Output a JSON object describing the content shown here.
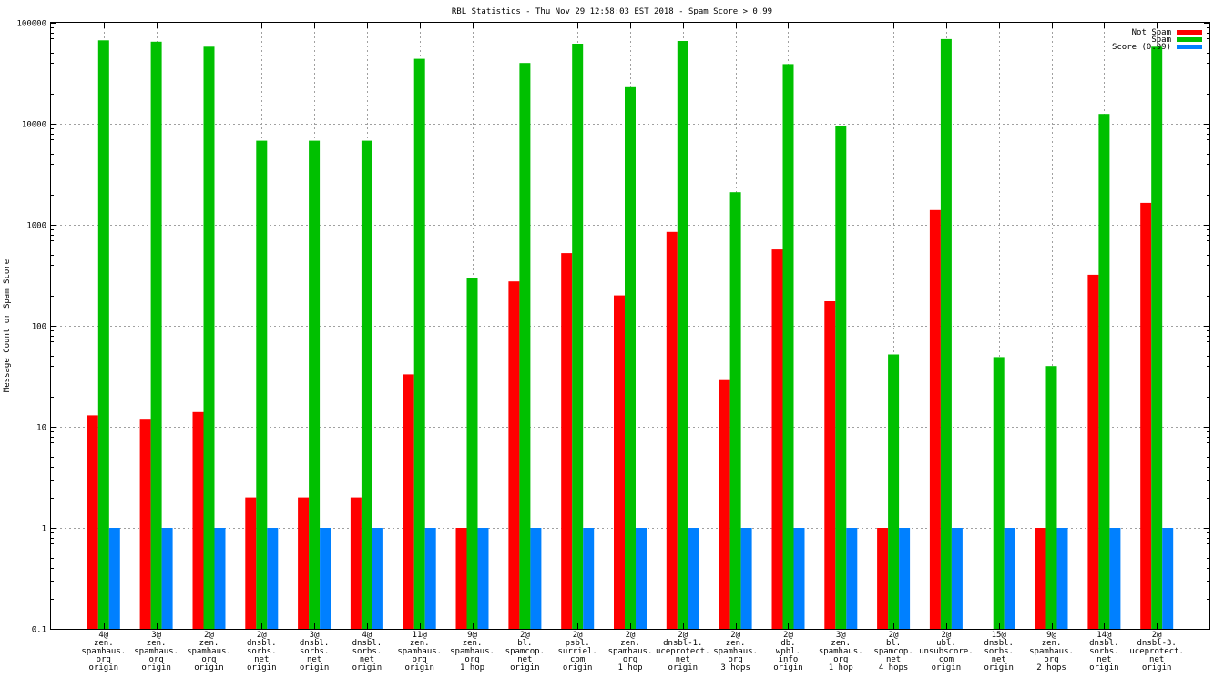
{
  "chart_data": {
    "type": "bar",
    "title": "RBL Statistics - Thu Nov 29 12:58:03 EST 2018 - Spam Score > 0.99",
    "xlabel": "",
    "ylabel": "Message Count or Spam Score",
    "yscale": "log",
    "ylim": [
      0.1,
      100000
    ],
    "ytick_labels": [
      "0.1",
      "1",
      "10",
      "100",
      "1000",
      "10000",
      "100000"
    ],
    "grid": true,
    "legend_position": "top-right",
    "categories": [
      [
        "4@",
        "zen.",
        "spamhaus.",
        "org",
        "origin"
      ],
      [
        "3@",
        "zen.",
        "spamhaus.",
        "org",
        "origin"
      ],
      [
        "2@",
        "zen.",
        "spamhaus.",
        "org",
        "origin"
      ],
      [
        "2@",
        "dnsbl.",
        "sorbs.",
        "net",
        "origin"
      ],
      [
        "3@",
        "dnsbl.",
        "sorbs.",
        "net",
        "origin"
      ],
      [
        "4@",
        "dnsbl.",
        "sorbs.",
        "net",
        "origin"
      ],
      [
        "11@",
        "zen.",
        "spamhaus.",
        "org",
        "origin"
      ],
      [
        "9@",
        "zen.",
        "spamhaus.",
        "org",
        "1 hop"
      ],
      [
        "2@",
        "bl.",
        "spamcop.",
        "net",
        "origin"
      ],
      [
        "2@",
        "psbl.",
        "surriel.",
        "com",
        "origin"
      ],
      [
        "2@",
        "zen.",
        "spamhaus.",
        "org",
        "1 hop"
      ],
      [
        "2@",
        "dnsbl-1.",
        "uceprotect.",
        "net",
        "origin"
      ],
      [
        "2@",
        "zen.",
        "spamhaus.",
        "org",
        "3 hops"
      ],
      [
        "2@",
        "db.",
        "wpbl.",
        "info",
        "origin"
      ],
      [
        "3@",
        "zen.",
        "spamhaus.",
        "org",
        "1 hop"
      ],
      [
        "2@",
        "bl.",
        "spamcop.",
        "net",
        "4 hops"
      ],
      [
        "2@",
        "ubl.",
        "unsubscore.",
        "com",
        "origin"
      ],
      [
        "15@",
        "dnsbl.",
        "sorbs.",
        "net",
        "origin"
      ],
      [
        "9@",
        "zen.",
        "spamhaus.",
        "org",
        "2 hops"
      ],
      [
        "14@",
        "dnsbl.",
        "sorbs.",
        "net",
        "origin"
      ],
      [
        "2@",
        "dnsbl-3.",
        "uceprotect.",
        "net",
        "origin"
      ]
    ],
    "series": [
      {
        "name": "Not Spam",
        "color": "#ff0000",
        "values": [
          13,
          12,
          14,
          2,
          2,
          2,
          33,
          1,
          275,
          525,
          200,
          850,
          29,
          570,
          175,
          1,
          1400,
          null,
          1,
          320,
          1650
        ]
      },
      {
        "name": "Spam",
        "color": "#00c000",
        "values": [
          67000,
          65000,
          58000,
          6800,
          6800,
          6800,
          44000,
          300,
          40000,
          62000,
          23000,
          66000,
          2100,
          39000,
          9500,
          52,
          69000,
          49,
          40,
          12500,
          58000
        ]
      },
      {
        "name": "Score (0.99)",
        "color": "#0080ff",
        "values": [
          1,
          1,
          1,
          1,
          1,
          1,
          1,
          1,
          1,
          1,
          1,
          1,
          1,
          1,
          1,
          1,
          1,
          1,
          1,
          1,
          1
        ]
      }
    ]
  }
}
